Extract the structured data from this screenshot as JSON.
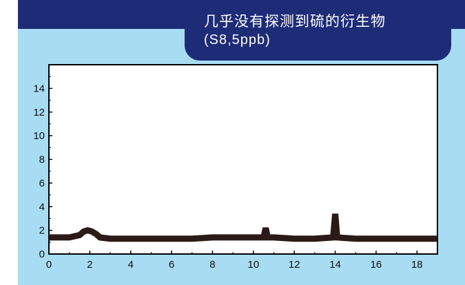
{
  "header": {
    "title_line1": "几乎没有探测到硫的衍生物",
    "title_line2": "(S8,5ppb)"
  },
  "colors": {
    "background": "#a8dcf2",
    "header": "#1e2c78",
    "plot_area": "#ffffff",
    "trace": "#2b1a17"
  },
  "chart_data": {
    "type": "line",
    "title": "",
    "xlabel": "",
    "ylabel": "",
    "xlim": [
      0,
      19
    ],
    "ylim": [
      0,
      16
    ],
    "x_ticks": [
      0,
      2,
      4,
      6,
      8,
      10,
      12,
      14,
      16,
      18
    ],
    "y_ticks": [
      0,
      2,
      4,
      6,
      8,
      10,
      12,
      14
    ],
    "grid": false,
    "series": [
      {
        "x": [
          0,
          0.5,
          1.0,
          1.5,
          1.7,
          1.9,
          2.1,
          2.3,
          2.5,
          3.0,
          4.0,
          5.0,
          6.0,
          7.0,
          8.0,
          9.0,
          10.0,
          10.5,
          10.6,
          10.7,
          11.0,
          12.0,
          13.0,
          13.9,
          14.0,
          14.1,
          15.0,
          16.0,
          17.0,
          18.0,
          19.0
        ],
        "y": [
          1.4,
          1.4,
          1.4,
          1.6,
          1.9,
          2.0,
          1.9,
          1.7,
          1.4,
          1.3,
          1.3,
          1.3,
          1.3,
          1.3,
          1.4,
          1.4,
          1.4,
          1.4,
          2.2,
          1.4,
          1.4,
          1.3,
          1.3,
          1.4,
          3.4,
          1.4,
          1.3,
          1.3,
          1.3,
          1.3,
          1.3
        ]
      }
    ]
  }
}
